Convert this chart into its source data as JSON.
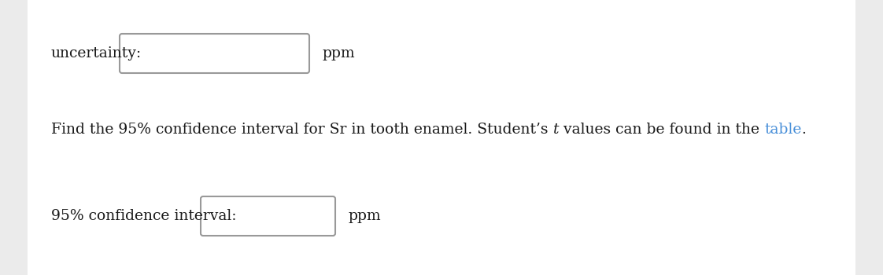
{
  "background_color": "#ebebeb",
  "content_bg": "#ffffff",
  "text_color": "#1a1a1a",
  "link_color": "#4a90d9",
  "label1": "uncertainty:",
  "label2": "95% confidence interval:",
  "unit": "ppm",
  "seg1": "Find the 95% confidence interval for Sr in tooth enamel. Student’s ",
  "seg2": "t",
  "seg3": " values can be found in the ",
  "seg4": "table",
  "seg5": ".",
  "font_size": 13.5,
  "font_family": "DejaVu Serif"
}
